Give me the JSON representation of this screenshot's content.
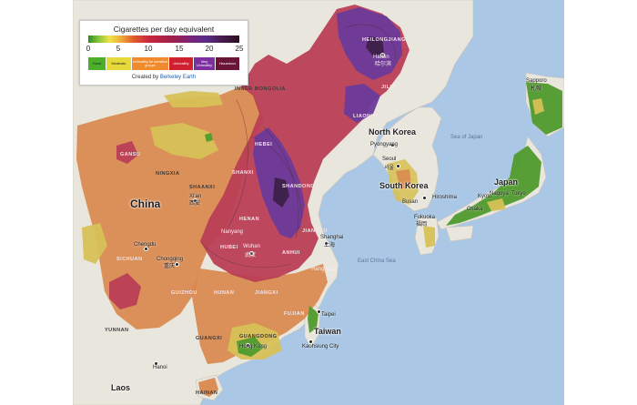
{
  "legend": {
    "title": "Cigarettes per day equivalent",
    "ticks": [
      "0",
      "5",
      "10",
      "15",
      "20",
      "25"
    ],
    "categories": [
      {
        "label": "Good",
        "color": "#4caf2a"
      },
      {
        "label": "Moderate",
        "color": "#e7d93a"
      },
      {
        "label": "Unhealthy for sensitive groups",
        "color": "#ef8b2c"
      },
      {
        "label": "Unhealthy",
        "color": "#d01f2e"
      },
      {
        "label": "Very Unhealthy",
        "color": "#7b2fa0"
      },
      {
        "label": "Hazardous",
        "color": "#6a1537"
      }
    ],
    "credit_prefix": "Created by",
    "credit_org": "Berkeley Earth"
  },
  "colors": {
    "ocean": "#aac8e6",
    "land": "#e9e6de",
    "good": "#4f9a2c",
    "moderate": "#d7c157",
    "sensitive": "#d9894e",
    "unhealthy": "#bb3f55",
    "very_unhealthy": "#8d2a5e",
    "hazardous": "#5c2c8c"
  },
  "countries": {
    "china": "China",
    "north_korea": "North Korea",
    "south_korea": "South Korea",
    "japan": "Japan",
    "taiwan": "Taiwan",
    "laos": "Laos",
    "inner_mongolia": "INNER MONGOLIA"
  },
  "seas": {
    "sea_of_japan": "Sea of Japan",
    "east_china_sea": "East China Sea"
  },
  "provinces": {
    "heilongjiang": "HEILONGJIANG",
    "jilin": "JILIN",
    "liaoning": "LIAONING",
    "hebei": "HEBEI",
    "shandong": "SHANDONG",
    "shanxi": "SHANXI",
    "shaanxi": "SHAANXI",
    "ningxia": "NINGXIA",
    "gansu": "GANSU",
    "henan": "HENAN",
    "hubei": "HUBEI",
    "anhui": "ANHUI",
    "jiangsu": "JIANGSU",
    "sichuan": "SICHUAN",
    "hunan": "HUNAN",
    "jiangxi": "JIANGXI",
    "guizhou": "GUIZHOU",
    "fujian": "FUJIAN",
    "guangxi": "GUANGXI",
    "guangdong": "GUANGDONG",
    "yunnan": "YUNNAN",
    "hainan": "HAINAN"
  },
  "cities": {
    "harbin": "Harbin",
    "harbin_cn": "哈尔滨",
    "pyongyang": "Pyongyang",
    "seoul": "Seoul",
    "seoul_kr": "서울",
    "busan": "Busan",
    "xian": "Xi'an",
    "xian_cn": "西安",
    "chengdu": "Chengdu",
    "chongqing": "Chongqing",
    "chongqing_cn": "重庆",
    "nanyang": "Nanyang",
    "wuhan": "Wuhan",
    "wuhan_cn": "武汉",
    "shanghai": "Shanghai",
    "shanghai_cn": "上海",
    "hangzhou": "Hangzhou",
    "taipei": "Taipei",
    "kaohsiung": "Kaohsiung City",
    "hong_kong": "Hong Kong",
    "hanoi": "Hanoi",
    "hiroshima": "Hiroshima",
    "osaka": "Osaka",
    "kyoto": "Kyoto",
    "nagoya": "Nagoya",
    "tokyo": "Tokyo",
    "sapporo": "Sapporo",
    "sapporo_jp": "札幌",
    "fukuoka": "Fukuoka",
    "fukuoka_jp": "福岡"
  }
}
